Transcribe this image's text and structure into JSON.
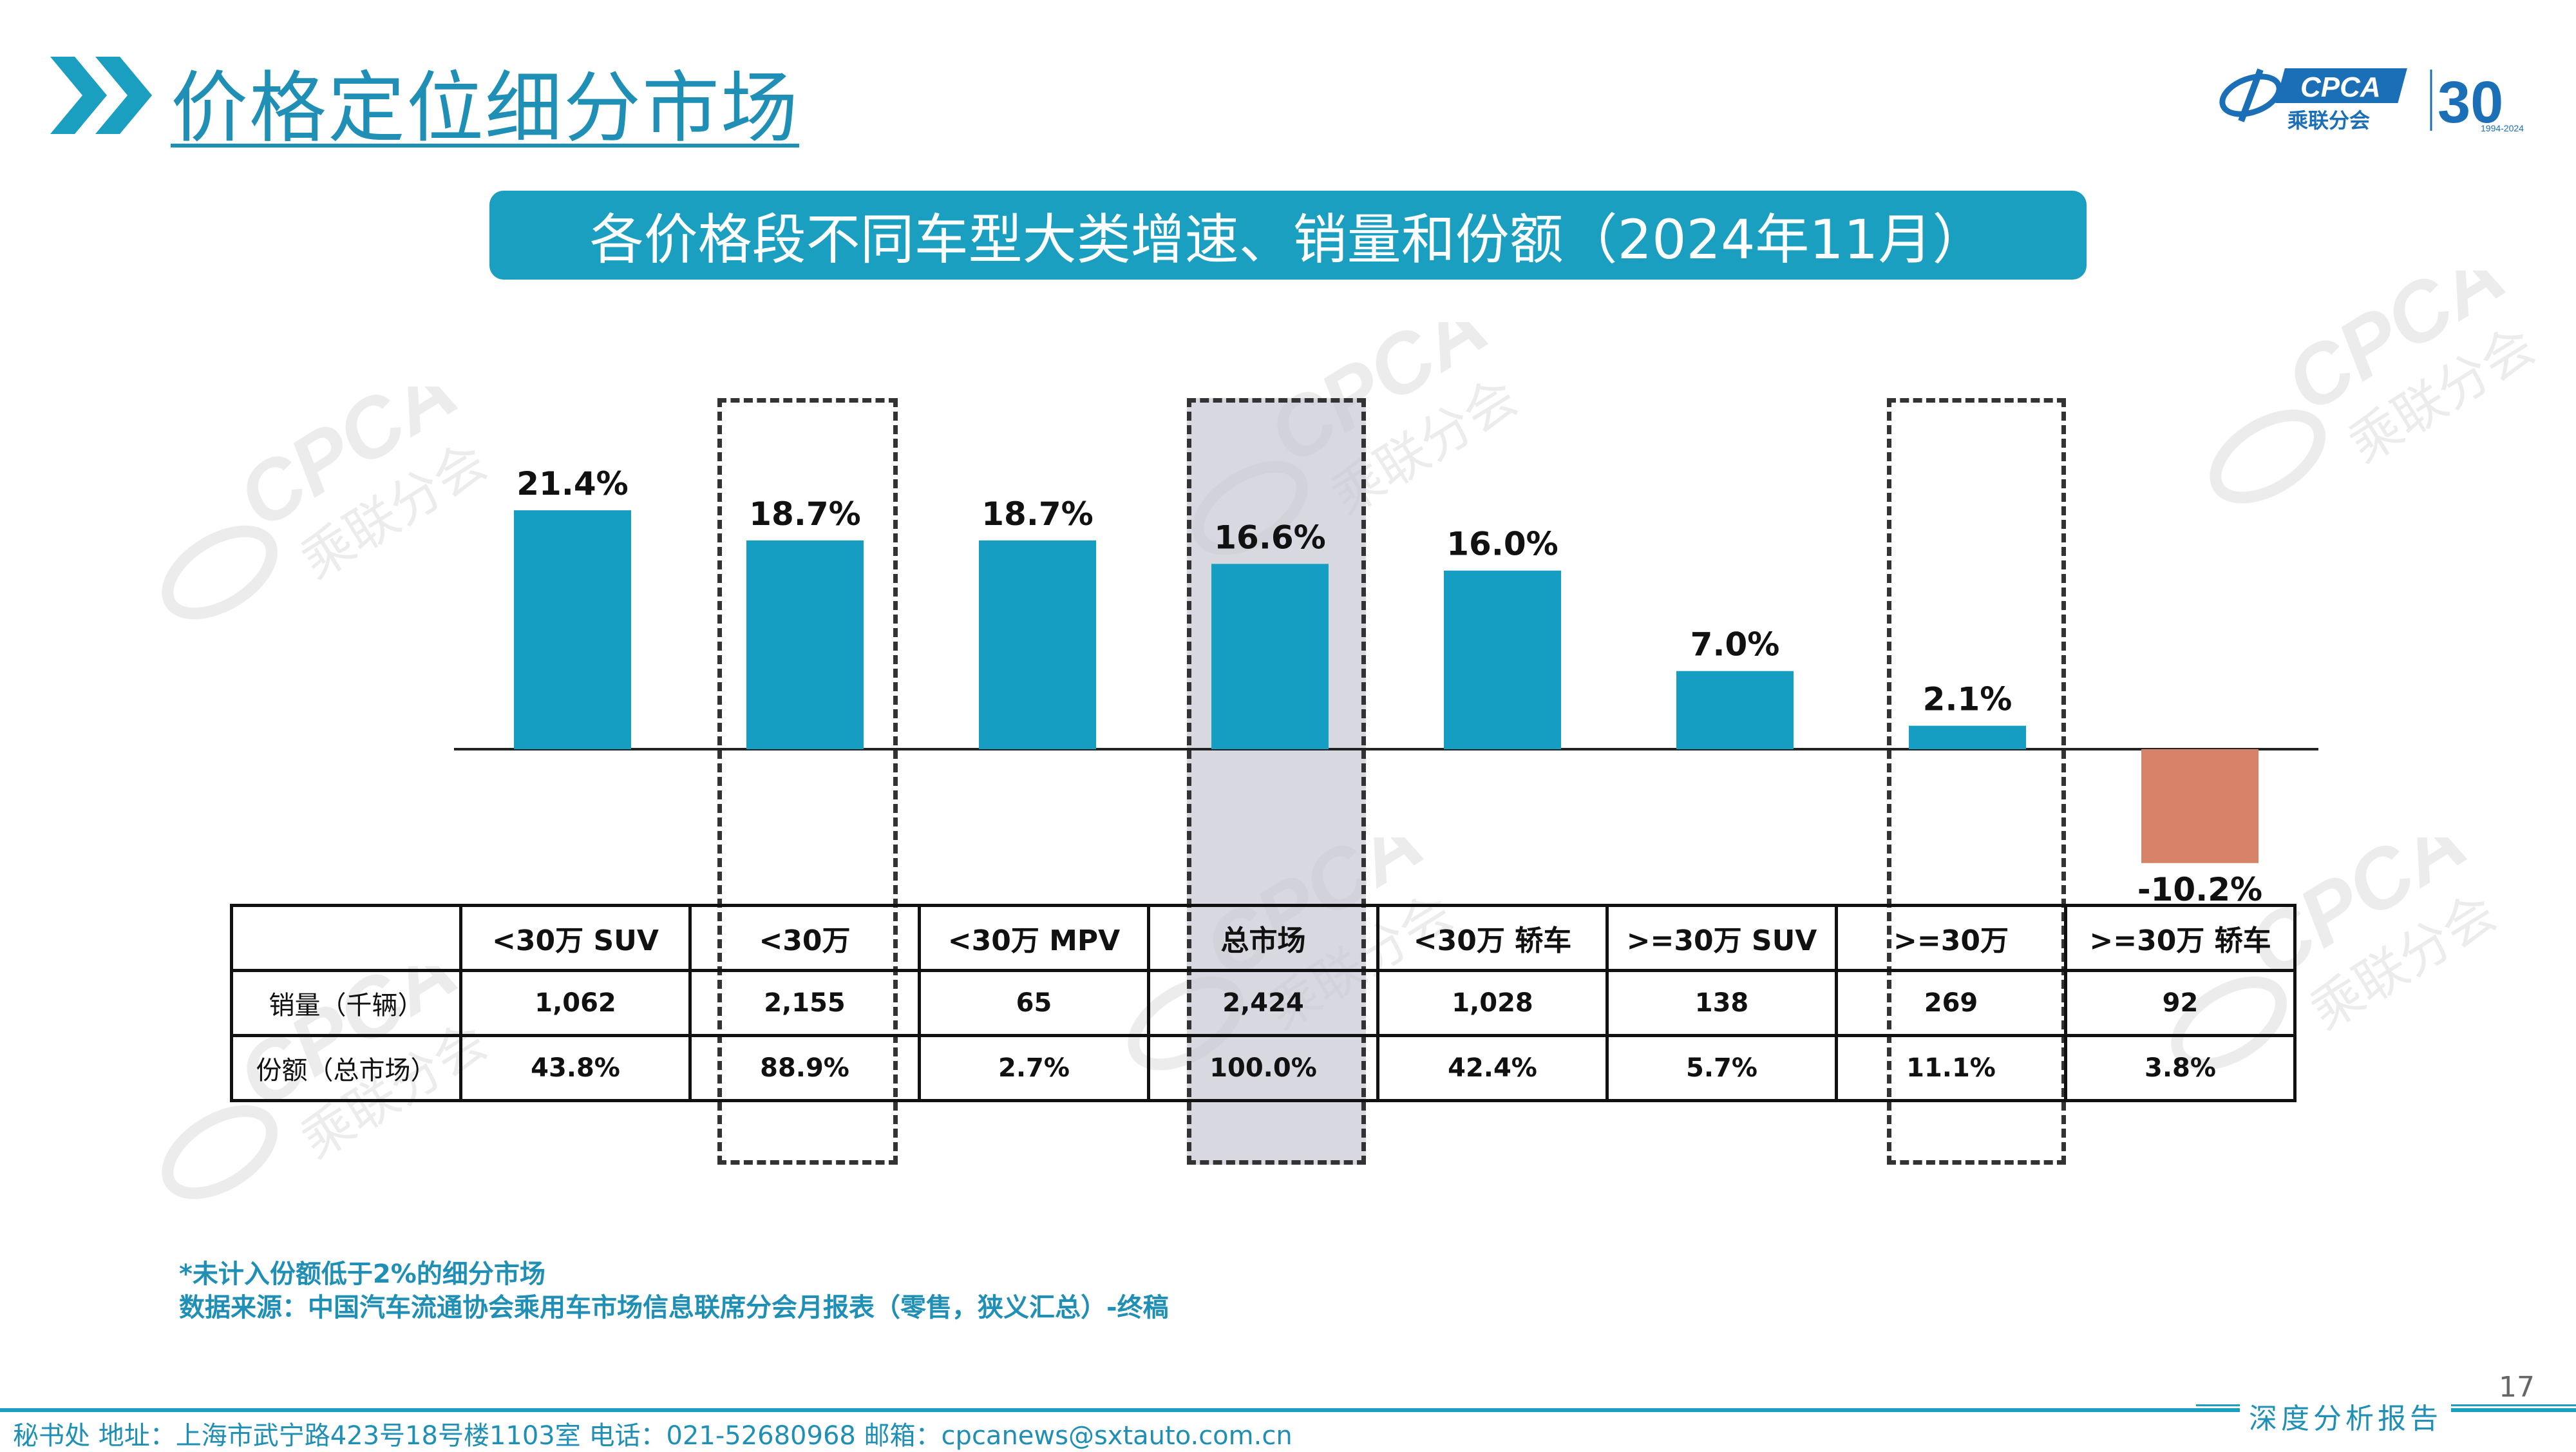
{
  "header": {
    "title": "价格定位细分市场",
    "logo_text": "CPCA",
    "logo_cn": "乘联分会",
    "logo_30": "30",
    "logo_years": "1994-2024"
  },
  "banner": {
    "text": "各价格段不同车型大类增速、销量和份额（2024年11月）"
  },
  "colors": {
    "accent": "#1a9fc1",
    "positive_bar": "#169dc2",
    "negative_bar": "#d9826a",
    "highlight": "#c8c8d4"
  },
  "chart_data": {
    "type": "bar",
    "title": "各价格段不同车型大类增速、销量和份额（2024年11月）",
    "categories": [
      "<30万 SUV",
      "<30万",
      "<30万 MPV",
      "总市场",
      "<30万 轿车",
      ">=30万 SUV",
      ">=30万",
      ">=30万 轿车"
    ],
    "values": [
      21.4,
      18.7,
      18.7,
      16.6,
      16.0,
      7.0,
      2.1,
      -10.2
    ],
    "value_labels": [
      "21.4%",
      "18.7%",
      "18.7%",
      "16.6%",
      "16.0%",
      "7.0%",
      "2.1%",
      "-10.2%"
    ],
    "unit": "%",
    "ylim": [
      -10.2,
      21.4
    ],
    "grid": false,
    "legend": "none",
    "highlighted_categories": [
      "<30万",
      "总市场",
      ">=30万"
    ],
    "filled_highlight": "总市场"
  },
  "table": {
    "headers": [
      "",
      "<30万 SUV",
      "<30万",
      "<30万 MPV",
      "总市场",
      "<30万 轿车",
      ">=30万 SUV",
      ">=30万",
      ">=30万 轿车"
    ],
    "rows": [
      [
        "销量（千辆）",
        "1,062",
        "2,155",
        "65",
        "2,424",
        "1,028",
        "138",
        "269",
        "92"
      ],
      [
        "份额（总市场）",
        "43.8%",
        "88.9%",
        "2.7%",
        "100.0%",
        "42.4%",
        "5.7%",
        "11.1%",
        "3.8%"
      ]
    ]
  },
  "notes": {
    "line1": "*未计入份额低于2%的细分市场",
    "line2": "数据来源：中国汽车流通协会乘用车市场信息联席分会月报表（零售，狭义汇总）-终稿"
  },
  "watermark": {
    "text": "CPCA",
    "cn": "乘联分会"
  },
  "footer": {
    "contact": "秘书处  地址：上海市武宁路423号18号楼1103室  电话：021-52680968  邮箱：cpcanews@sxtauto.com.cn",
    "report": "深度分析报告",
    "page_number": "17"
  }
}
